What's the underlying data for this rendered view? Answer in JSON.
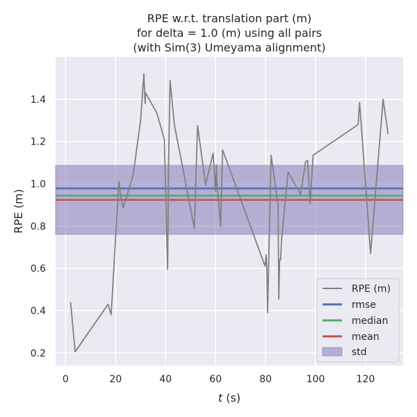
{
  "chart_data": {
    "type": "line",
    "title_lines": [
      "RPE w.r.t. translation part (m)",
      "for delta = 1.0 (m) using all pairs",
      "(with Sim(3) Umeyama alignment)"
    ],
    "xlabel": "t (s)",
    "xlabel_var": "t",
    "xlabel_unit": " (s)",
    "ylabel": "RPE (m)",
    "xlim": [
      -4,
      135
    ],
    "ylim": [
      0.14,
      1.6
    ],
    "xticks": [
      0,
      20,
      40,
      60,
      80,
      100,
      120
    ],
    "yticks": [
      0.2,
      0.4,
      0.6,
      0.8,
      1.0,
      1.2,
      1.4
    ],
    "ytick_labels": [
      "0.2",
      "0.4",
      "0.6",
      "0.8",
      "1.0",
      "1.2",
      "1.4"
    ],
    "grid": true,
    "legend_position": "bottom-right",
    "colors": {
      "background": "#eaeaf2",
      "grid": "#ffffff",
      "rpe": "#808080",
      "rmse": "#4c72b0",
      "median": "#55a868",
      "mean": "#c44e52",
      "std": "#8172b2"
    },
    "series": [
      {
        "name": "RPE (m)",
        "x": [
          2.0,
          3.8,
          17.0,
          18.2,
          21.3,
          21.8,
          23.0,
          27.0,
          30.0,
          31.3,
          31.8,
          32.0,
          36.5,
          39.5,
          40.8,
          41.2,
          41.8,
          43.5,
          51.5,
          52.8,
          56.0,
          59.0,
          60.0,
          60.3,
          60.6,
          61.0,
          62.0,
          62.8,
          79.8,
          80.2,
          80.5,
          80.8,
          82.2,
          85.0,
          85.3,
          85.6,
          86.0,
          86.4,
          89.0,
          94.0,
          96.0,
          96.8,
          97.8,
          99.0,
          117.0,
          117.6,
          122.0,
          127.0,
          129.0
        ],
        "y": [
          0.44,
          0.205,
          0.43,
          0.38,
          1.01,
          0.96,
          0.885,
          1.04,
          1.3,
          1.52,
          1.38,
          1.43,
          1.335,
          1.21,
          0.595,
          1.1,
          1.49,
          1.28,
          0.79,
          1.275,
          0.995,
          1.145,
          0.965,
          1.09,
          0.975,
          0.95,
          0.8,
          1.16,
          0.61,
          0.665,
          0.6,
          0.39,
          1.135,
          0.9,
          0.455,
          0.64,
          0.64,
          0.74,
          1.055,
          0.95,
          1.105,
          1.11,
          0.905,
          1.135,
          1.28,
          1.385,
          0.67,
          1.4,
          1.235
        ]
      }
    ],
    "stats": {
      "rmse": 0.978,
      "median": 0.944,
      "mean": 0.924,
      "std": 0.163
    },
    "legend": [
      "RPE (m)",
      "rmse",
      "median",
      "mean",
      "std"
    ]
  }
}
